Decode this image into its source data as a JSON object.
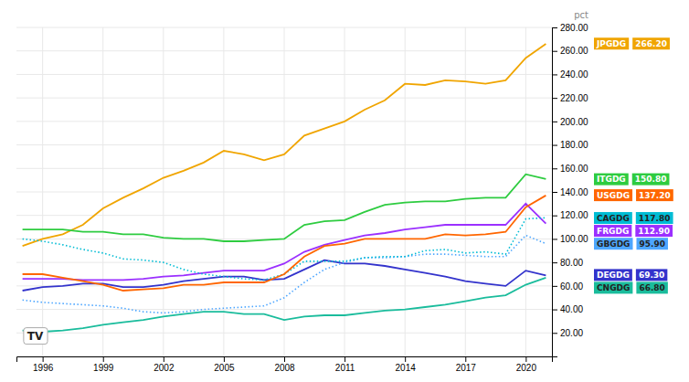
{
  "chart_data": {
    "type": "line",
    "x": [
      1995,
      1996,
      1997,
      1998,
      1999,
      2000,
      2001,
      2002,
      2003,
      2004,
      2005,
      2006,
      2007,
      2008,
      2009,
      2010,
      2011,
      2012,
      2013,
      2014,
      2015,
      2016,
      2017,
      2018,
      2019,
      2020,
      2021
    ],
    "series": [
      {
        "name": "JPGDG",
        "color": "#F0A500",
        "line_style": "solid",
        "values": [
          94,
          100,
          104,
          112,
          126,
          135,
          143,
          152,
          158,
          165,
          175,
          172,
          167,
          172,
          188,
          194,
          200,
          210,
          218,
          232,
          231,
          235,
          234,
          232,
          235,
          254,
          266
        ]
      },
      {
        "name": "CNGDG",
        "color": "#1abc9c",
        "line_style": "solid",
        "values": [
          22,
          21,
          22,
          24,
          27,
          29,
          31,
          34,
          36,
          38,
          38,
          36,
          36,
          31,
          34,
          35,
          35,
          37,
          39,
          40,
          42,
          44,
          47,
          50,
          52,
          61,
          67
        ]
      },
      {
        "name": "DEGDG",
        "color": "#3333cc",
        "line_style": "solid",
        "values": [
          56,
          59,
          60,
          62,
          62,
          59,
          59,
          61,
          64,
          66,
          68,
          68,
          65,
          66,
          74,
          82,
          79,
          79,
          77,
          74,
          71,
          68,
          64,
          62,
          60,
          73,
          69
        ]
      },
      {
        "name": "GBGDG",
        "color": "#4da6ff",
        "line_style": "dotted",
        "values": [
          48,
          46,
          45,
          44,
          43,
          41,
          38,
          37,
          38,
          40,
          41,
          42,
          43,
          50,
          63,
          74,
          80,
          84,
          84,
          85,
          87,
          87,
          86,
          85,
          85,
          103,
          96
        ]
      },
      {
        "name": "FRGDG",
        "color": "#9B30FF",
        "line_style": "solid",
        "values": [
          66,
          66,
          66,
          65,
          65,
          65,
          66,
          68,
          69,
          71,
          73,
          73,
          73,
          79,
          89,
          95,
          99,
          103,
          105,
          108,
          110,
          112,
          112,
          112,
          112,
          130,
          113
        ]
      },
      {
        "name": "CAGDG",
        "color": "#00bcd4",
        "line_style": "dotted",
        "values": [
          100,
          98,
          95,
          91,
          88,
          83,
          82,
          80,
          74,
          70,
          68,
          66,
          65,
          70,
          81,
          81,
          81,
          84,
          85,
          85,
          90,
          91,
          88,
          89,
          87,
          117,
          118
        ]
      },
      {
        "name": "USGDG",
        "color": "#ff6600",
        "line_style": "solid",
        "values": [
          70,
          70,
          67,
          64,
          61,
          56,
          57,
          58,
          61,
          61,
          63,
          63,
          63,
          70,
          85,
          94,
          96,
          100,
          100,
          100,
          100,
          104,
          103,
          104,
          106,
          127,
          137
        ]
      },
      {
        "name": "ITGDG",
        "color": "#2ecc40",
        "line_style": "solid",
        "values": [
          108,
          108,
          108,
          106,
          106,
          104,
          104,
          101,
          100,
          100,
          98,
          98,
          99,
          100,
          112,
          115,
          116,
          123,
          129,
          131,
          132,
          132,
          134,
          135,
          135,
          155,
          151
        ]
      }
    ],
    "annotations": [
      {
        "name": "JPGDG",
        "y": 266.2,
        "label": "266.20",
        "color": "#F0A500",
        "text_color": "#ffffff"
      },
      {
        "name": "ITGDG",
        "y": 150.8,
        "label": "150.80",
        "color": "#2ecc40",
        "text_color": "#ffffff"
      },
      {
        "name": "USGDG",
        "y": 137.2,
        "label": "137.20",
        "color": "#ff6600",
        "text_color": "#ffffff"
      },
      {
        "name": "CAGDG",
        "y": 117.8,
        "label": "117.80",
        "color": "#00bcd4",
        "text_color": "#222222"
      },
      {
        "name": "FRGDG",
        "y": 112.9,
        "label": "112.90",
        "color": "#9B30FF",
        "text_color": "#ffffff"
      },
      {
        "name": "GBGDG",
        "y": 95.9,
        "label": "95.90",
        "color": "#4da6ff",
        "text_color": "#222222"
      },
      {
        "name": "DEGDG",
        "y": 69.3,
        "label": "69.30",
        "color": "#3333cc",
        "text_color": "#ffffff"
      },
      {
        "name": "CNGDG",
        "y": 66.8,
        "label": "66.80",
        "color": "#1abc9c",
        "text_color": "#222222"
      }
    ],
    "ylabel": "pct",
    "watermark": "TV",
    "xlim": [
      1994.7,
      2021.3
    ],
    "xticks": [
      1996,
      1999,
      2002,
      2005,
      2008,
      2011,
      2014,
      2017,
      2020
    ],
    "ylim": [
      0,
      280
    ],
    "yticks": [
      {
        "value": 20,
        "label": "20.00"
      },
      {
        "value": 40,
        "label": "40.00"
      },
      {
        "value": 60,
        "label": "60.00"
      },
      {
        "value": 80,
        "label": "80.00"
      },
      {
        "value": 100,
        "label": "100.00"
      },
      {
        "value": 120,
        "label": "120.00"
      },
      {
        "value": 140,
        "label": "140.00"
      },
      {
        "value": 160,
        "label": "160.00"
      },
      {
        "value": 180,
        "label": "180.00"
      },
      {
        "value": 200,
        "label": "200.00"
      },
      {
        "value": 220,
        "label": "220.00"
      },
      {
        "value": 240,
        "label": "240.00"
      },
      {
        "value": 260,
        "label": "260.00"
      },
      {
        "value": 280,
        "label": "280.00"
      }
    ],
    "grid": true
  }
}
